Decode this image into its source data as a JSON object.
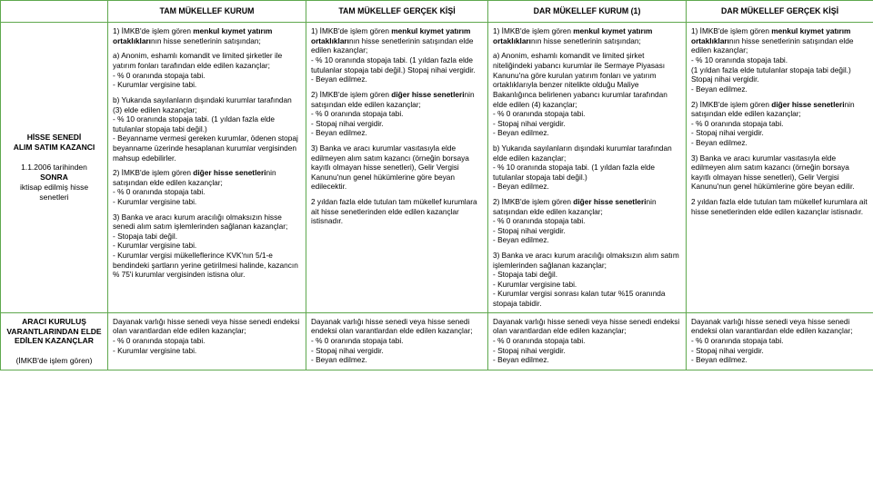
{
  "columns": {
    "c0": "",
    "c1": "TAM MÜKELLEF KURUM",
    "c2": "TAM MÜKELLEF GERÇEK KİŞİ",
    "c3": "DAR MÜKELLEF KURUM (1)",
    "c4": "DAR MÜKELLEF GERÇEK KİŞİ"
  },
  "row1": {
    "hdr_l1": "HİSSE SENEDİ",
    "hdr_l2": "ALIM SATIM KAZANCI",
    "hdr_l3": "1.1.2006 tarihinden ",
    "hdr_l3b": "SONRA",
    "hdr_l4": "iktisap edilmiş hisse senetleri",
    "c1_p1a": "1) İMKB'de işlem gören ",
    "c1_p1b": "menkul kıymet yatırım ortaklıkları",
    "c1_p1c": "nın hisse senetlerinin satışından;",
    "c1_p2": "a) Anonim, eshamlı komandit ve limited şirketler ile yatırım fonları tarafından elde edilen kazançlar;",
    "c1_p3": "- % 0 oranında stopaja tabi.",
    "c1_p4": "- Kurumlar vergisine tabi.",
    "c1_p5": "b) Yukarıda sayılanların dışındaki kurumlar tarafından (3) elde edilen kazançlar;",
    "c1_p6": " - % 10 oranında stopaja tabi. (1 yıldan fazla elde tutulanlar stopaja tabi değil.)",
    "c1_p7": "- Beyanname vermesi gereken kurumlar, ödenen stopaj beyanname üzerinde hesaplanan kurumlar vergisinden mahsup edebilirler.",
    "c1_p8a": "2) İMKB'de işlem gören ",
    "c1_p8b": "diğer hisse senetleri",
    "c1_p8c": "nin satışından elde edilen kazançlar;",
    "c1_p9": "- % 0 oranında stopaja tabi.",
    "c1_p10": "- Kurumlar vergisine tabi.",
    "c1_p11": "3) Banka ve aracı kurum aracılığı olmaksızın hisse senedi alım satım işlemlerinden sağlanan kazançlar;",
    "c1_p12": "- Stopaja tabi değil.",
    "c1_p13": "- Kurumlar vergisine tabi.",
    "c1_p14": "- Kurumlar vergisi mükelleflerince KVK'nın 5/1-e bendindeki şartların yerine getirilmesi halinde, kazancın % 75'i kurumlar vergisinden istisna olur.",
    "c2_p1a": "1) İMKB'de işlem gören ",
    "c2_p1b": "menkul kıymet yatırım ortaklıkları",
    "c2_p1c": "nın hisse senetlerinin satışından elde edilen kazançlar;",
    "c2_p2": "- % 10 oranında stopaja tabi. (1 yıldan fazla elde tutulanlar stopaja tabi değil.) Stopaj nihai vergidir.",
    "c2_p3": "- Beyan edilmez.",
    "c2_p4a": "2) İMKB'de işlem gören ",
    "c2_p4b": "diğer hisse senetleri",
    "c2_p4c": "nin satışından elde edilen kazançlar;",
    "c2_p5": "- % 0 oranında stopaja tabi.",
    "c2_p6": "- Stopaj nihai vergidir.",
    "c2_p7": "- Beyan edilmez.",
    "c2_p8": "3) Banka ve aracı kurumlar vasıtasıyla elde edilmeyen alım satım kazancı (örneğin borsaya kayıtlı olmayan hisse senetleri), Gelir Vergisi Kanunu'nun genel hükümlerine göre beyan edilecektir.",
    "c2_p9": "2 yıldan fazla elde tutulan tam mükellef kurumlara ait hisse senetlerinden elde edilen kazançlar istisnadır.",
    "c3_p1a": "1) İMKB'de işlem gören ",
    "c3_p1b": "menkul kıymet yatırım ortaklıkları",
    "c3_p1c": "nın hisse senetlerinin satışından;",
    "c3_p2": "a) Anonim, eshamlı komandit ve limited şirket niteliğindeki yabancı kurumlar ile Sermaye Piyasası Kanunu'na göre kurulan yatırım fonları ve yatırım ortaklıklarıyla benzer nitelikte olduğu Maliye Bakanlığınca belirlenen yabancı kurumlar tarafından elde edilen (4) kazançlar;",
    "c3_p3": "- % 0 oranında stopaja tabi.",
    "c3_p4": "- Stopaj nihai vergidir.",
    "c3_p5": "- Beyan edilmez.",
    "c3_p6": "b) Yukarıda sayılanların dışındaki kurumlar tarafından elde edilen kazançlar;",
    "c3_p7": "- % 10 oranında stopaja tabi. (1 yıldan fazla elde tutulanlar stopaja tabi değil.)",
    "c3_p8": "- Beyan edilmez.",
    "c3_p9a": "2) İMKB'de işlem gören ",
    "c3_p9b": "diğer hisse senetleri",
    "c3_p9c": "nin satışından elde edilen kazançlar;",
    "c3_p10": "- % 0 oranında stopaja tabi.",
    "c3_p11": "- Stopaj nihai vergidir.",
    "c3_p12": "- Beyan edilmez.",
    "c3_p13": "3) Banka ve aracı kurum aracılığı olmaksızın alım satım işlemlerinden sağlanan kazançlar;",
    "c3_p14": "- Stopaja tabi değil.",
    "c3_p15": "- Kurumlar vergisine tabi.",
    "c3_p16": "- Kurumlar vergisi sonrası kalan tutar %15 oranında stopaja tabidir.",
    "c4_p1a": "1) İMKB'de işlem gören ",
    "c4_p1b": "menkul kıymet yatırım ortaklıkları",
    "c4_p1c": "nın hisse senetlerinin satışından elde edilen kazançlar;",
    "c4_p2": "- % 10 oranında stopaja tabi.",
    "c4_p3": "(1 yıldan fazla elde tutulanlar stopaja tabi değil.) Stopaj nihai vergidir.",
    "c4_p4": "- Beyan edilmez.",
    "c4_p5a": "2) İMKB'de işlem gören ",
    "c4_p5b": "diğer hisse senetleri",
    "c4_p5c": "nin satışından elde edilen kazançlar;",
    "c4_p6": "- % 0 oranında stopaja tabi.",
    "c4_p7": "- Stopaj nihai vergidir.",
    "c4_p8": "- Beyan edilmez.",
    "c4_p9": "3) Banka ve aracı kurumlar vasıtasıyla elde edilmeyen alım satım kazancı (örneğin borsaya kayıtlı olmayan hisse senetleri), Gelir Vergisi Kanunu'nun genel hükümlerine göre beyan edilir.",
    "c4_p10": "2 yıldan fazla elde tutulan tam mükellef kurumlara ait hisse senetlerinden elde edilen kazançlar istisnadır."
  },
  "row2": {
    "hdr_l1": "ARACI KURULUŞ VARANTLARINDAN ELDE EDİLEN KAZANÇLAR",
    "hdr_l2": "(İMKB'de işlem gören)",
    "c1_p1": "Dayanak varlığı hisse senedi veya hisse senedi endeksi olan varantlardan elde edilen kazançlar;",
    "c1_p2": "- % 0 oranında stopaja tabi.",
    "c1_p3": "- Kurumlar vergisine tabi.",
    "c2_p1": "Dayanak varlığı hisse senedi veya hisse senedi endeksi olan varantlardan elde edilen kazançlar;",
    "c2_p2": "- % 0 oranında stopaja tabi.",
    "c2_p3": "- Stopaj nihai vergidir.",
    "c2_p4": "- Beyan edilmez.",
    "c3_p1": "Dayanak varlığı hisse senedi veya hisse senedi endeksi olan varantlardan elde edilen kazançlar;",
    "c3_p2": "- % 0 oranında stopaja tabi.",
    "c3_p3": "- Stopaj nihai vergidir.",
    "c3_p4": "- Beyan edilmez.",
    "c4_p1": "Dayanak varlığı hisse senedi veya hisse senedi endeksi olan varantlardan elde edilen kazançlar;",
    "c4_p2": "- % 0 oranında stopaja tabi.",
    "c4_p3": "- Stopaj nihai vergidir.",
    "c4_p4": "- Beyan edilmez."
  }
}
